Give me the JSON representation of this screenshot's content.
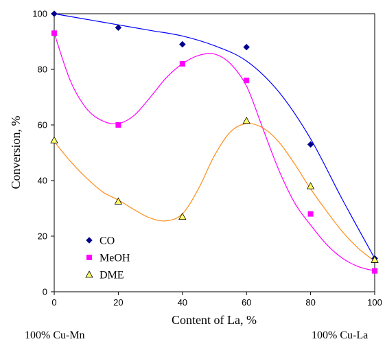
{
  "chart_data": {
    "type": "line",
    "xlabel": "Content of La, %",
    "ylabel": "Conversion, %",
    "xlim": [
      0,
      100
    ],
    "ylim": [
      0,
      100
    ],
    "xticks": [
      "0",
      "20",
      "40",
      "60",
      "80",
      "100"
    ],
    "yticks": [
      "0",
      "20",
      "40",
      "60",
      "80",
      "100"
    ],
    "legend_position": "lower-left",
    "series": [
      {
        "name": "CO",
        "color": "#0000ff",
        "marker": "diamond",
        "marker_color": "#00008b",
        "points": [
          {
            "x": 0,
            "y": 100
          },
          {
            "x": 20,
            "y": 95
          },
          {
            "x": 40,
            "y": 89
          },
          {
            "x": 60,
            "y": 88
          },
          {
            "x": 80,
            "y": 53
          },
          {
            "x": 100,
            "y": 12
          }
        ],
        "curve": [
          [
            0,
            100
          ],
          [
            10,
            98
          ],
          [
            20,
            96
          ],
          [
            30,
            94
          ],
          [
            40,
            92
          ],
          [
            50,
            88.5
          ],
          [
            60,
            83
          ],
          [
            70,
            72
          ],
          [
            80,
            55
          ],
          [
            90,
            33
          ],
          [
            100,
            12
          ]
        ]
      },
      {
        "name": "MeOH",
        "color": "#ff00ff",
        "marker": "square",
        "marker_color": "#ff00ff",
        "points": [
          {
            "x": 0,
            "y": 93
          },
          {
            "x": 20,
            "y": 60
          },
          {
            "x": 40,
            "y": 82
          },
          {
            "x": 60,
            "y": 76
          },
          {
            "x": 80,
            "y": 28
          },
          {
            "x": 100,
            "y": 7.5
          }
        ],
        "curve": [
          [
            0,
            93
          ],
          [
            5,
            76
          ],
          [
            10,
            66
          ],
          [
            15,
            61.5
          ],
          [
            20,
            60.5
          ],
          [
            25,
            63.5
          ],
          [
            30,
            70
          ],
          [
            35,
            77
          ],
          [
            40,
            82
          ],
          [
            45,
            85
          ],
          [
            50,
            85.5
          ],
          [
            55,
            82
          ],
          [
            60,
            74
          ],
          [
            65,
            59
          ],
          [
            70,
            44
          ],
          [
            75,
            32
          ],
          [
            80,
            24
          ],
          [
            85,
            17
          ],
          [
            90,
            12
          ],
          [
            95,
            9
          ],
          [
            100,
            7.5
          ]
        ]
      },
      {
        "name": "DME",
        "color": "#ff8c1a",
        "marker": "triangle",
        "marker_color": "#ffff66",
        "points": [
          {
            "x": 0,
            "y": 54.5
          },
          {
            "x": 20,
            "y": 32.5
          },
          {
            "x": 40,
            "y": 27
          },
          {
            "x": 60,
            "y": 61.5
          },
          {
            "x": 80,
            "y": 38
          },
          {
            "x": 100,
            "y": 11.5
          }
        ],
        "curve": [
          [
            0,
            54
          ],
          [
            5,
            47
          ],
          [
            10,
            41
          ],
          [
            15,
            36
          ],
          [
            20,
            33
          ],
          [
            25,
            29.5
          ],
          [
            30,
            26.5
          ],
          [
            35,
            25.5
          ],
          [
            40,
            28
          ],
          [
            45,
            37
          ],
          [
            50,
            49
          ],
          [
            55,
            57.5
          ],
          [
            60,
            60.5
          ],
          [
            65,
            59
          ],
          [
            70,
            54
          ],
          [
            75,
            46
          ],
          [
            80,
            37
          ],
          [
            85,
            29
          ],
          [
            90,
            21.5
          ],
          [
            95,
            15.5
          ],
          [
            100,
            11
          ]
        ]
      }
    ]
  },
  "notes": {
    "left": "100% Cu-Mn",
    "right": "100% Cu-La"
  }
}
